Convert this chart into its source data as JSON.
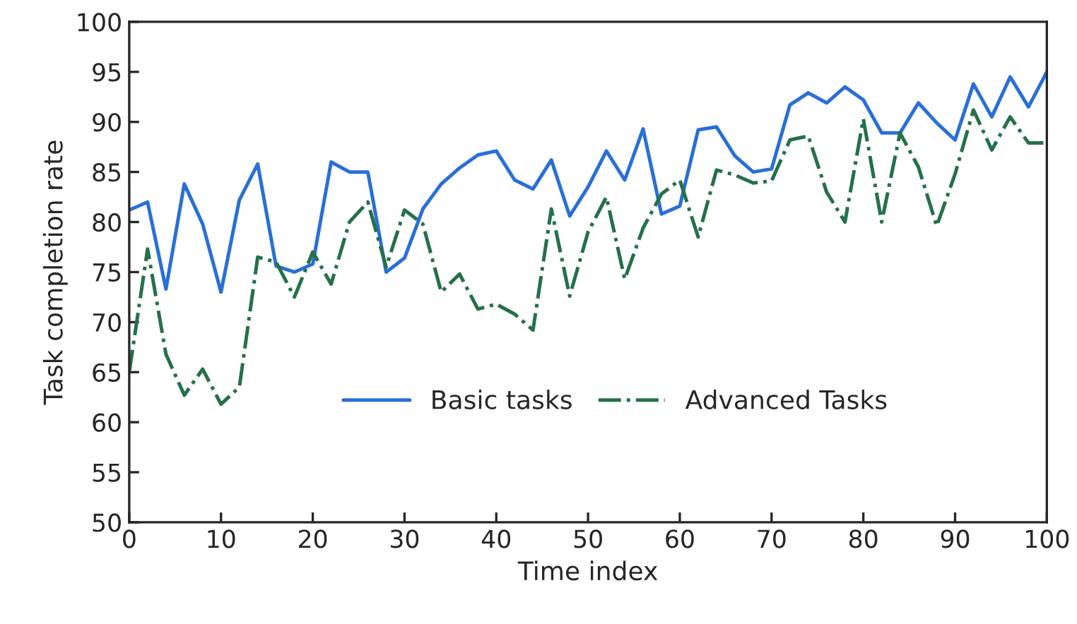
{
  "chart_data": {
    "type": "line",
    "xlabel": "Time index",
    "ylabel": "Task completion rate",
    "x": [
      0,
      2,
      4,
      6,
      8,
      10,
      12,
      14,
      16,
      18,
      20,
      22,
      24,
      26,
      28,
      30,
      32,
      34,
      36,
      38,
      40,
      42,
      44,
      46,
      48,
      50,
      52,
      54,
      56,
      58,
      60,
      62,
      64,
      66,
      68,
      70,
      72,
      74,
      76,
      78,
      80,
      82,
      84,
      86,
      88,
      90,
      92,
      94,
      96,
      98,
      100
    ],
    "series": [
      {
        "name": "Basic tasks",
        "color": "#2a6fd6",
        "line_style": "solid",
        "values": [
          81.2,
          82,
          73.3,
          83.8,
          79.8,
          73,
          82.2,
          85.8,
          75.6,
          75,
          75.8,
          86,
          85,
          85,
          75,
          76.4,
          81.3,
          83.8,
          85.4,
          86.7,
          87.1,
          84.2,
          83.3,
          86.2,
          80.6,
          83.5,
          87.1,
          84.2,
          89.3,
          80.8,
          81.6,
          89.2,
          89.5,
          86.6,
          85,
          85.3,
          91.7,
          92.9,
          91.9,
          93.5,
          92.2,
          88.9,
          88.9,
          91.9,
          89.9,
          88.2,
          93.8,
          90.5,
          94.5,
          91.5,
          95
        ]
      },
      {
        "name": "Advanced Tasks",
        "color": "#25704a",
        "line_style": "dashdot",
        "values": [
          65,
          77.3,
          66.8,
          62.7,
          65.3,
          61.8,
          63.5,
          76.5,
          76,
          72.5,
          77,
          73.8,
          80,
          82,
          75.5,
          81.2,
          79.8,
          73,
          74.8,
          71.3,
          71.8,
          70.8,
          69.2,
          81.3,
          72.6,
          79,
          82.5,
          74.3,
          79.4,
          82.8,
          84.2,
          78.5,
          85.2,
          84.7,
          83.9,
          84.1,
          88.2,
          88.6,
          83,
          80,
          90.3,
          80,
          88.9,
          85.5,
          79.6,
          84.8,
          91.2,
          87.2,
          90.5,
          87.9,
          87.9
        ]
      }
    ],
    "xlim": [
      0,
      100
    ],
    "xticks": [
      0,
      10,
      20,
      30,
      40,
      50,
      60,
      70,
      80,
      90,
      100
    ],
    "ylim": [
      50,
      100
    ],
    "yticks": [
      50,
      55,
      60,
      65,
      70,
      75,
      80,
      85,
      90,
      95,
      100
    ],
    "grid": false,
    "legend": "bottom",
    "marker": "none"
  }
}
